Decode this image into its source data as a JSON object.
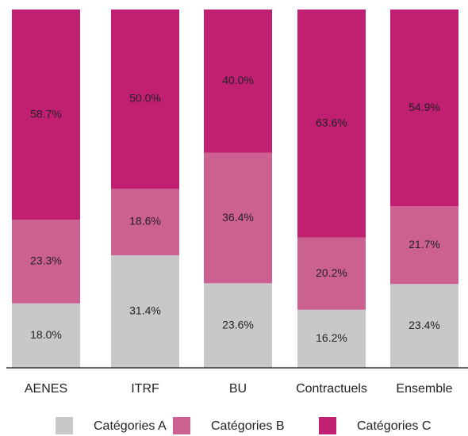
{
  "chart_data": {
    "type": "stacked_bar",
    "categories": [
      "AENES",
      "ITRF",
      "BU",
      "Contractuels",
      "Ensemble"
    ],
    "series": [
      {
        "name": "Catégories A",
        "color": "#c8c8c8",
        "values": [
          18.0,
          31.4,
          23.6,
          16.2,
          23.4
        ],
        "value_labels": [
          "18.0%",
          "31.4%",
          "23.6%",
          "16.2%",
          "23.4%"
        ]
      },
      {
        "name": "Catégories B",
        "color": "#cc6090",
        "values": [
          23.3,
          18.6,
          36.4,
          20.2,
          21.7
        ],
        "value_labels": [
          "23.3%",
          "18.6%",
          "36.4%",
          "20.2%",
          "21.7%"
        ]
      },
      {
        "name": "Catégories C",
        "color": "#c01f72",
        "values": [
          58.7,
          50.0,
          40.0,
          63.6,
          54.9
        ],
        "value_labels": [
          "58.7%",
          "50.0%",
          "40.0%",
          "63.6%",
          "54.9%"
        ]
      }
    ],
    "legend": "bottom"
  }
}
